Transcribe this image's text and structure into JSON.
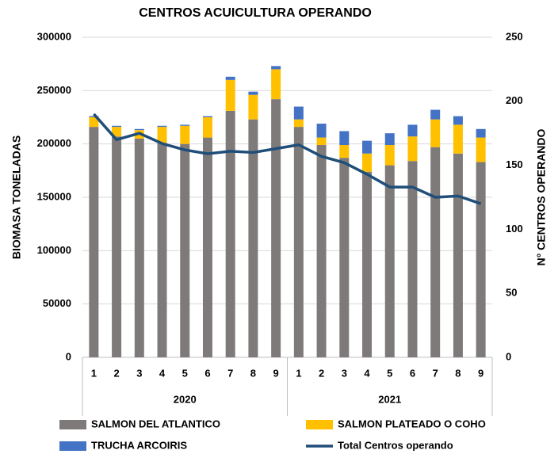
{
  "chart_data": {
    "type": "bar",
    "stacked": true,
    "title": "CENTROS ACUICULTURA OPERANDO",
    "y_label": "BIOMASA TONELADAS",
    "y2_label": "N° CENTROS OPERANDO",
    "categories": [
      "1",
      "2",
      "3",
      "4",
      "5",
      "6",
      "7",
      "8",
      "9",
      "1",
      "2",
      "3",
      "4",
      "5",
      "6",
      "7",
      "8",
      "9"
    ],
    "groups": [
      "2020",
      "2021"
    ],
    "series": [
      {
        "name": "SALMON DEL ATLANTICO",
        "type": "bar",
        "color": "#7f7a7a",
        "values": [
          216000,
          207000,
          205000,
          201000,
          200000,
          206000,
          231000,
          223000,
          242000,
          216000,
          199000,
          187000,
          174000,
          180000,
          184000,
          197000,
          191000,
          183000
        ]
      },
      {
        "name": "SALMON PLATEADO O COHO",
        "type": "bar",
        "color": "#ffc000",
        "values": [
          9000,
          9000,
          8000,
          15000,
          17000,
          19000,
          29000,
          23000,
          28000,
          7000,
          7000,
          12000,
          17000,
          19000,
          23000,
          26000,
          27000,
          23000
        ]
      },
      {
        "name": "TRUCHA ARCOIRIS",
        "type": "bar",
        "color": "#4472c4",
        "values": [
          1000,
          1000,
          1000,
          1000,
          1000,
          1000,
          3000,
          3000,
          3000,
          12000,
          13000,
          13000,
          12000,
          11000,
          11000,
          9000,
          8000,
          8000
        ]
      },
      {
        "name": "Total Centros operando",
        "type": "line",
        "axis": "y2",
        "color": "#1f4e79",
        "values": [
          190,
          170,
          175,
          167,
          162,
          159,
          161,
          160,
          163,
          166,
          157,
          152,
          143,
          133,
          133,
          125,
          126,
          120
        ]
      }
    ],
    "ylim": [
      0,
      300000
    ],
    "yticks": [
      0,
      50000,
      100000,
      150000,
      200000,
      250000,
      300000
    ],
    "y2lim": [
      0,
      250
    ],
    "y2ticks": [
      0,
      50,
      100,
      150,
      200,
      250
    ],
    "grid": true,
    "legend": "bottom"
  }
}
